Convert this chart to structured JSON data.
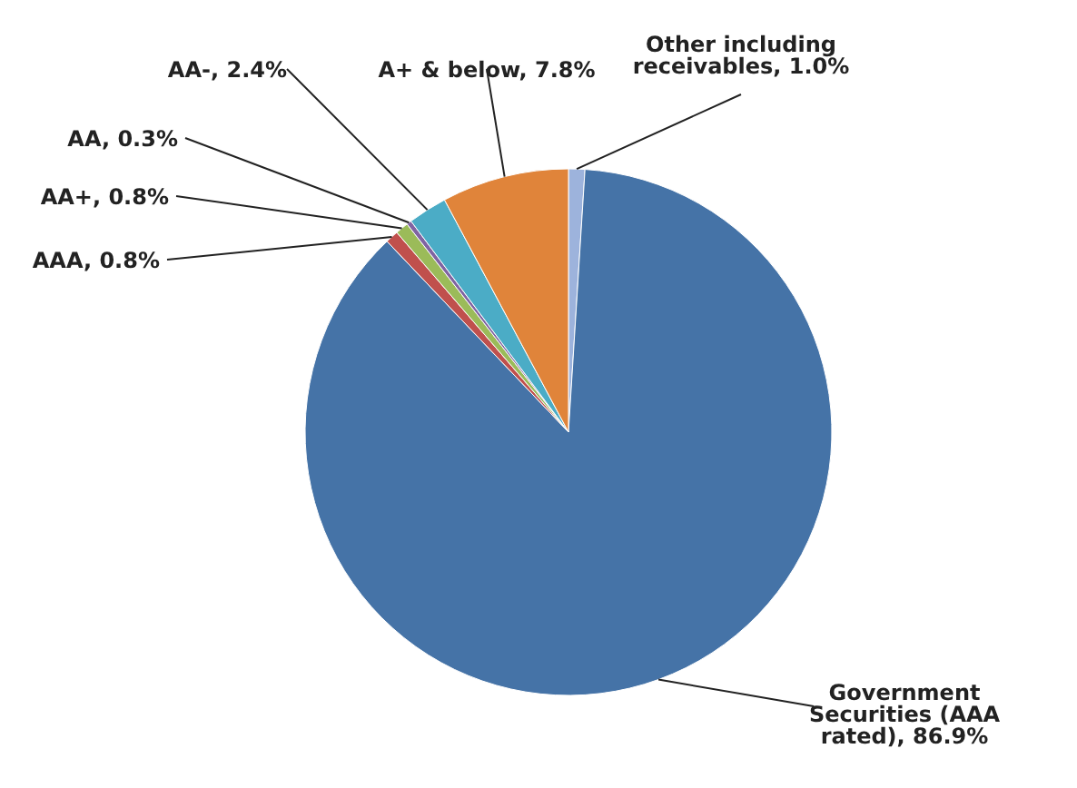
{
  "chart_data": {
    "type": "pie",
    "categories": [
      "Other including receivables",
      "Government Securities (AAA rated)",
      "AAA",
      "AA+",
      "AA",
      "AA-",
      "A+ & below"
    ],
    "values": [
      1.0,
      86.9,
      0.8,
      0.8,
      0.3,
      2.4,
      7.8
    ],
    "colors": [
      "#9db3dc",
      "#4573a7",
      "#c0504d",
      "#9bbb59",
      "#8064a2",
      "#4bacc6",
      "#e0843a"
    ],
    "value_labels": [
      "1.0%",
      "86.9%",
      "0.8%",
      "0.8%",
      "0.3%",
      "2.4%",
      "7.8%"
    ]
  }
}
